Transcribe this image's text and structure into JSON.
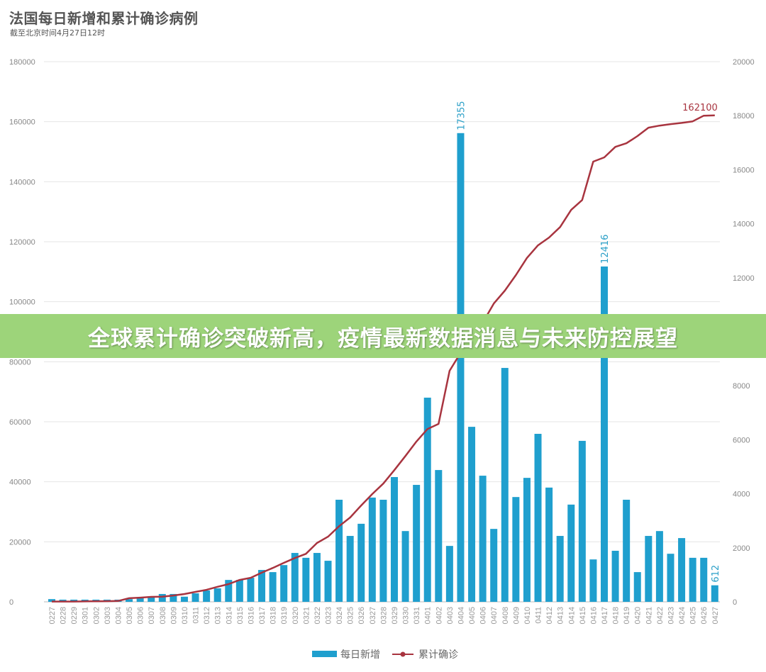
{
  "title": "法国每日新增和累计确诊病例",
  "subtitle": "截至北京时间4月27日12时",
  "banner": {
    "text": "全球累计确诊突破新高，疫情最新数据消息与未来防控展望",
    "color": "#9dd47a"
  },
  "chart_data": {
    "type": "bar+line",
    "title": "法国每日新增和累计确诊病例",
    "subtitle": "截至北京时间4月27日12时",
    "categories": [
      "0227",
      "0228",
      "0229",
      "0301",
      "0302",
      "0303",
      "0304",
      "0305",
      "0306",
      "0307",
      "0308",
      "0309",
      "0310",
      "0311",
      "0312",
      "0313",
      "0314",
      "0315",
      "0316",
      "0317",
      "0318",
      "0319",
      "0320",
      "0321",
      "0322",
      "0323",
      "0324",
      "0325",
      "0326",
      "0327",
      "0328",
      "0329",
      "0330",
      "0331",
      "0401",
      "0402",
      "0403",
      "0404",
      "0405",
      "0406",
      "0407",
      "0408",
      "0409",
      "0410",
      "0411",
      "0412",
      "0413",
      "0414",
      "0415",
      "0416",
      "0417",
      "0418",
      "0419",
      "0420",
      "0421",
      "0422",
      "0423",
      "0424",
      "0425",
      "0426",
      "0427"
    ],
    "left_axis": {
      "range": [
        0,
        180000
      ],
      "ticks": [
        "0",
        "20000",
        "40000",
        "60000",
        "80000",
        "100000",
        "120000",
        "140000",
        "160000",
        "180000"
      ]
    },
    "right_axis": {
      "range": [
        0,
        20000
      ],
      "ticks": [
        "0",
        "2000",
        "4000",
        "6000",
        "8000",
        "10000",
        "12000",
        "14000",
        "16000",
        "18000",
        "20000"
      ]
    },
    "grid": true,
    "legend_position": "bottom",
    "series": [
      {
        "name": "每日新增",
        "type": "bar",
        "axis": "right",
        "color": "#1f9fce",
        "values": [
          100,
          80,
          80,
          80,
          80,
          80,
          80,
          100,
          160,
          190,
          290,
          290,
          190,
          315,
          420,
          500,
          810,
          810,
          890,
          1180,
          1100,
          1360,
          1810,
          1630,
          1810,
          1520,
          3780,
          2440,
          2890,
          3860,
          3780,
          4620,
          2620,
          4330,
          7560,
          4880,
          2070,
          17355,
          6480,
          4670,
          2700,
          8660,
          3880,
          4590,
          6220,
          4230,
          2440,
          3600,
          5960,
          1570,
          12416,
          1890,
          3780,
          1100,
          2440,
          2620,
          1780,
          2360,
          1630,
          1630,
          612
        ],
        "labels": [
          {
            "category": "0404",
            "text": "17355"
          },
          {
            "category": "0417",
            "text": "12416"
          },
          {
            "category": "0427",
            "text": "612"
          }
        ]
      },
      {
        "name": "累计确诊",
        "type": "line",
        "axis": "left",
        "color": "#a8343f",
        "values": [
          100,
          100,
          100,
          130,
          190,
          210,
          290,
          1200,
          1400,
          1650,
          1700,
          2100,
          2600,
          3300,
          4000,
          5000,
          5900,
          7300,
          8000,
          9700,
          11300,
          13000,
          14600,
          16000,
          19600,
          21700,
          25200,
          28100,
          32100,
          35900,
          39400,
          43900,
          48600,
          53400,
          57600,
          59300,
          77000,
          83000,
          90700,
          93000,
          99400,
          103700,
          108900,
          114600,
          118800,
          121400,
          124900,
          130600,
          133900,
          146700,
          148100,
          151600,
          152800,
          155200,
          158000,
          158700,
          159200,
          159600,
          160100,
          162000,
          162100
        ],
        "labels": [
          {
            "category": "0427",
            "text": "162100"
          }
        ]
      }
    ]
  }
}
